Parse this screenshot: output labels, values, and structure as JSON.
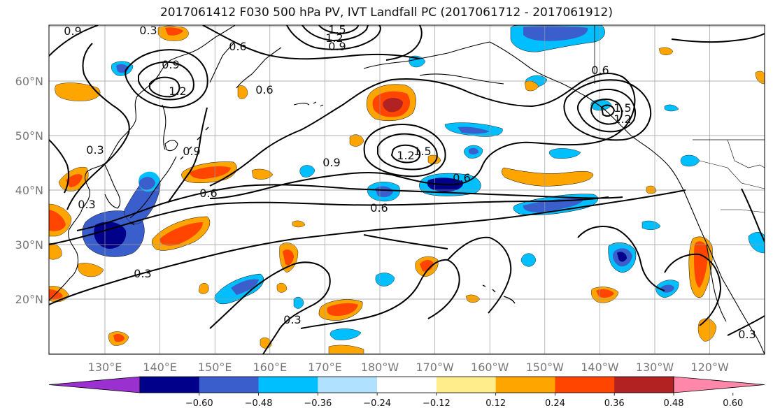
{
  "title": "2017061412 F030 500 hPa PV, IVT Landfall PC (2017061712 - 2017061912)",
  "lat_labels": [
    "60°N",
    "50°N",
    "40°N",
    "30°N",
    "20°N"
  ],
  "lon_labels": [
    "130°E",
    "140°E",
    "150°E",
    "160°E",
    "170°E",
    "180°W",
    "170°W",
    "160°W",
    "150°W",
    "140°W",
    "130°W",
    "120°W"
  ],
  "colorbar": {
    "ticks": [
      "−0.60",
      "−0.48",
      "−0.36",
      "−0.24",
      "−0.12",
      "0.12",
      "0.24",
      "0.36",
      "0.48",
      "0.60"
    ],
    "colors": [
      "#9b30d0",
      "#00008b",
      "#3a5fcd",
      "#00bfff",
      "#b0e2ff",
      "#ffffff",
      "#ffec8b",
      "#ffa500",
      "#ff4500",
      "#b22222",
      "#ff88aa"
    ]
  },
  "contour_labels": [
    "0.3",
    "0.3",
    "0.3",
    "0.3",
    "0.3",
    "0.3",
    "0.6",
    "0.6",
    "0.6",
    "0.6",
    "0.6",
    "0.6",
    "0.9",
    "0.9",
    "0.9",
    "0.9",
    "0.9",
    "1.2",
    "1.2",
    "1.2",
    "1.2",
    "1.5",
    "1.5",
    "1.5"
  ]
}
